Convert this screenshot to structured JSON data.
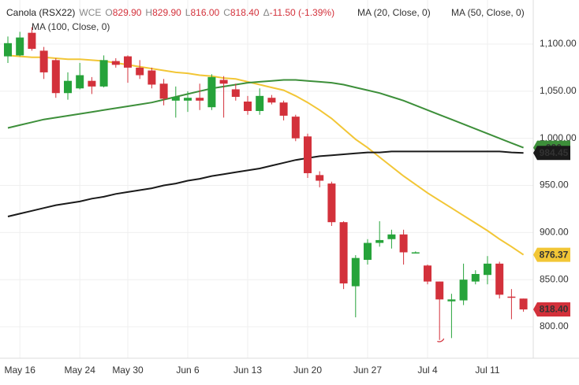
{
  "chart_data": {
    "type": "candlestick",
    "header": {
      "symbol": "Canola (RSX22)",
      "exchange": "WCE",
      "fields": [
        {
          "label": "O",
          "value": "829.90"
        },
        {
          "label": "H",
          "value": "829.90"
        },
        {
          "label": "L",
          "value": "816.00"
        },
        {
          "label": "C",
          "value": "818.40"
        },
        {
          "label": "Δ",
          "value": "-11.50 (-1.39%)"
        }
      ]
    },
    "categories": [
      null,
      "May 16",
      null,
      null,
      null,
      null,
      "May 24",
      null,
      null,
      null,
      "May 30",
      null,
      null,
      null,
      null,
      "Jun 6",
      null,
      null,
      null,
      null,
      "Jun 13",
      null,
      null,
      null,
      null,
      "Jun 20",
      null,
      null,
      null,
      null,
      "Jun 27",
      null,
      null,
      null,
      null,
      "Jul 4",
      null,
      null,
      null,
      null,
      "Jul 11",
      null,
      null,
      null
    ],
    "open": [
      1087,
      1088,
      1112,
      1093,
      1083,
      1048,
      1053,
      1061,
      1055,
      1082,
      1087,
      1075,
      1072,
      1058,
      1040,
      1040,
      1043,
      1033,
      1062,
      1052,
      1039,
      1029,
      1043,
      1038,
      1023,
      1002,
      961,
      952,
      911,
      843,
      871,
      889,
      893,
      898,
      879,
      865,
      848,
      827,
      828,
      848,
      855,
      867,
      832,
      829.9
    ],
    "high": [
      1108,
      1113,
      1118,
      1097,
      1085,
      1070,
      1080,
      1065,
      1088,
      1085,
      1088,
      1083,
      1075,
      1063,
      1055,
      1050,
      1058,
      1068,
      1066,
      1058,
      1045,
      1053,
      1046,
      1040,
      1025,
      1005,
      965,
      954,
      912,
      876,
      893,
      912,
      903,
      903,
      880,
      866,
      848,
      835,
      867,
      860,
      875,
      869,
      840,
      829.9
    ],
    "low": [
      1080,
      1087,
      1093,
      1063,
      1043,
      1041,
      1052,
      1047,
      1054,
      1075,
      1059,
      1063,
      1053,
      1035,
      1022,
      1028,
      1030,
      1030,
      1022,
      1040,
      1025,
      1025,
      1036,
      1019,
      997,
      958,
      948,
      907,
      840,
      810,
      866,
      885,
      883,
      866,
      879,
      845,
      786,
      788,
      823,
      845,
      845,
      830,
      808,
      816
    ],
    "close": [
      1101,
      1107,
      1095,
      1070,
      1048,
      1061,
      1067,
      1055,
      1083,
      1078,
      1075,
      1067,
      1057,
      1042,
      1044,
      1043,
      1040,
      1065,
      1058,
      1044,
      1029,
      1045,
      1038,
      1024,
      1000,
      963,
      955,
      911,
      846,
      873,
      889,
      892,
      898,
      879,
      879,
      848,
      829,
      829,
      850,
      856,
      867,
      834,
      831,
      818.4
    ],
    "up_color": "#26a33a",
    "down_color": "#d3313b",
    "series": [
      {
        "name": "MA (20, Close, 0)",
        "color": "#f2c636",
        "values": [
          1088,
          1087,
          1086,
          1086,
          1085,
          1084,
          1084,
          1083,
          1082,
          1080,
          1078,
          1076,
          1074,
          1072,
          1070,
          1069,
          1067,
          1066,
          1064,
          1063,
          1060,
          1057,
          1054,
          1051,
          1045,
          1038,
          1030,
          1021,
          1010,
          999,
          990,
          980,
          970,
          960,
          951,
          942,
          934,
          926,
          918,
          910,
          902,
          893,
          885,
          876.37
        ]
      },
      {
        "name": "MA (50, Close, 0)",
        "color": "#3d8f3a",
        "values": [
          1011,
          1014,
          1017,
          1020,
          1022,
          1024,
          1026,
          1028,
          1030,
          1032,
          1034,
          1036,
          1038,
          1041,
          1044,
          1047,
          1050,
          1053,
          1055,
          1057,
          1059,
          1060,
          1061,
          1062,
          1062,
          1061,
          1060,
          1059,
          1057,
          1054,
          1051,
          1048,
          1044,
          1040,
          1035,
          1030,
          1025,
          1020,
          1015,
          1010,
          1005,
          1000,
          995,
          990
        ]
      },
      {
        "name": "MA (100, Close, 0)",
        "color": "#1a1a1a",
        "values": [
          917,
          920,
          923,
          926,
          929,
          931,
          933,
          936,
          938,
          941,
          943,
          945,
          947,
          950,
          952,
          955,
          957,
          960,
          962,
          964,
          966,
          968,
          971,
          974,
          977,
          979,
          981,
          982,
          983,
          984,
          985,
          985,
          986,
          986,
          986,
          986,
          986,
          986,
          986,
          986,
          986,
          986,
          985,
          984.45
        ]
      }
    ],
    "ylim": [
      766.6,
      1146.8
    ],
    "yticks": [
      {
        "value": 800,
        "label": "800.00"
      },
      {
        "value": 850,
        "label": "850.00"
      },
      {
        "value": 900,
        "label": "900.00"
      },
      {
        "value": 950,
        "label": "950.00"
      },
      {
        "value": 1000,
        "label": "1,000.00"
      },
      {
        "value": 1050,
        "label": "1,050.00"
      },
      {
        "value": 1100,
        "label": "1,100.00"
      }
    ],
    "grid": true
  }
}
